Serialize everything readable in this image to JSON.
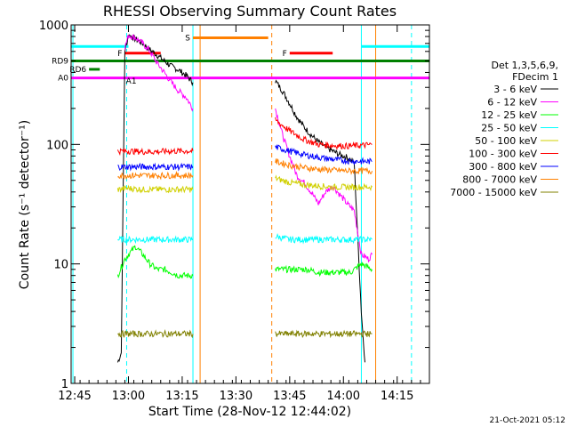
{
  "chart_data": {
    "type": "line",
    "title": "RHESSI Observing Summary Count Rates",
    "xlabel": "Start Time (28-Nov-12 12:44:02)",
    "ylabel": "Count Rate (s⁻¹ detector⁻¹)",
    "yscale": "log",
    "ylim": [
      1,
      1000
    ],
    "xlim_minutes": [
      0,
      100
    ],
    "x_ticks": [
      "12:45",
      "13:00",
      "13:15",
      "13:30",
      "13:45",
      "14:00",
      "14:15"
    ],
    "y_ticks": [
      "1",
      "10",
      "100",
      "1000"
    ],
    "legend_header": [
      "Det 1,3,5,6,9,",
      "FDecim 1"
    ],
    "legend_position": "right",
    "footer_timestamp": "21-Oct-2021 05:12",
    "series": [
      {
        "name": "3 - 6 keV",
        "color": "#000000",
        "segments": [
          {
            "t": [
              13,
              14,
              15,
              16,
              17,
              18,
              20,
              22,
              24,
              26,
              28,
              30,
              32,
              34
            ],
            "y": [
              1.5,
              1.8,
              600,
              820,
              800,
              760,
              700,
              620,
              560,
              500,
              450,
              420,
              380,
              330
            ]
          },
          {
            "t": [
              57,
              59,
              61,
              63,
              65,
              67,
              69,
              71,
              73,
              75,
              77,
              79,
              81,
              82
            ],
            "y": [
              340,
              280,
              220,
              170,
              140,
              120,
              105,
              95,
              88,
              82,
              78,
              70,
              4,
              1.5
            ]
          }
        ]
      },
      {
        "name": "6 - 12 keV",
        "color": "#ff00ff",
        "segments": [
          {
            "t": [
              15,
              16,
              18,
              20,
              22,
              24,
              26,
              28,
              30,
              32,
              34
            ],
            "y": [
              650,
              820,
              780,
              700,
              600,
              480,
              400,
              330,
              280,
              250,
              200
            ]
          },
          {
            "t": [
              57,
              59,
              61,
              63,
              65,
              67,
              69,
              71,
              73,
              75,
              77,
              79,
              81,
              83,
              84
            ],
            "y": [
              200,
              120,
              80,
              55,
              48,
              40,
              32,
              40,
              45,
              38,
              32,
              28,
              12,
              11,
              12
            ]
          }
        ]
      },
      {
        "name": "12 - 25 keV",
        "color": "#00ff00",
        "segments": [
          {
            "t": [
              13,
              15,
              16,
              18,
              20,
              22,
              24,
              26,
              28,
              30,
              32,
              34
            ],
            "y": [
              8,
              11,
              12,
              14,
              12,
              10,
              9,
              9,
              8.5,
              8,
              8,
              8
            ]
          },
          {
            "t": [
              57,
              60,
              63,
              66,
              69,
              72,
              75,
              78,
              81,
              84
            ],
            "y": [
              9,
              9,
              9,
              9,
              8.5,
              8.5,
              8.5,
              8.5,
              10,
              9
            ]
          }
        ]
      },
      {
        "name": "25 - 50 keV",
        "color": "#00ffff",
        "segments": [
          {
            "t": [
              13,
              16,
              20,
              24,
              28,
              32,
              34
            ],
            "y": [
              16,
              16,
              16,
              16,
              16,
              16,
              16
            ]
          },
          {
            "t": [
              57,
              61,
              65,
              69,
              73,
              77,
              81,
              84
            ],
            "y": [
              17,
              16,
              16,
              16,
              16,
              16,
              16,
              16
            ]
          }
        ]
      },
      {
        "name": "50 - 100 keV",
        "color": "#d0d000",
        "segments": [
          {
            "t": [
              13,
              16,
              20,
              24,
              28,
              32,
              34
            ],
            "y": [
              42,
              43,
              42,
              42,
              42,
              42,
              42
            ]
          },
          {
            "t": [
              57,
              61,
              65,
              69,
              73,
              77,
              81,
              84
            ],
            "y": [
              52,
              48,
              46,
              45,
              44,
              44,
              44,
              44
            ]
          }
        ]
      },
      {
        "name": "100 - 300 keV",
        "color": "#ff0000",
        "segments": [
          {
            "t": [
              13,
              16,
              20,
              24,
              28,
              32,
              34
            ],
            "y": [
              88,
              88,
              87,
              87,
              88,
              88,
              88
            ]
          },
          {
            "t": [
              57,
              61,
              65,
              69,
              73,
              77,
              81,
              84
            ],
            "y": [
              160,
              130,
              110,
              100,
              98,
              97,
              98,
              100
            ]
          }
        ]
      },
      {
        "name": "300 - 800 keV",
        "color": "#0000ff",
        "segments": [
          {
            "t": [
              13,
              16,
              20,
              24,
              28,
              32,
              34
            ],
            "y": [
              65,
              65,
              65,
              65,
              65,
              65,
              65
            ]
          },
          {
            "t": [
              57,
              61,
              65,
              69,
              73,
              77,
              81,
              84
            ],
            "y": [
              95,
              88,
              82,
              78,
              75,
              73,
              72,
              72
            ]
          }
        ]
      },
      {
        "name": "800 - 7000 keV",
        "color": "#ff8000",
        "segments": [
          {
            "t": [
              13,
              16,
              20,
              24,
              28,
              32,
              34
            ],
            "y": [
              55,
              55,
              55,
              55,
              55,
              55,
              55
            ]
          },
          {
            "t": [
              57,
              61,
              65,
              69,
              73,
              77,
              81,
              84
            ],
            "y": [
              72,
              67,
              64,
              62,
              61,
              60,
              60,
              60
            ]
          }
        ]
      },
      {
        "name": "7000 - 15000 keV",
        "color": "#808000",
        "segments": [
          {
            "t": [
              13,
              16,
              20,
              24,
              28,
              32,
              34
            ],
            "y": [
              2.6,
              2.6,
              2.6,
              2.6,
              2.6,
              2.6,
              2.6
            ]
          },
          {
            "t": [
              57,
              61,
              65,
              69,
              73,
              77,
              81,
              84
            ],
            "y": [
              2.6,
              2.6,
              2.6,
              2.6,
              2.6,
              2.6,
              2.6,
              2.6
            ]
          }
        ]
      }
    ],
    "state_flags": [
      {
        "label": "F",
        "color": "#ff0000",
        "t_start": 15,
        "t_end": 25,
        "y": 580
      },
      {
        "label": "F",
        "color": "#ff0000",
        "t_start": 61,
        "t_end": 73,
        "y": 580
      },
      {
        "label": "S",
        "color": "#ff8000",
        "t_start": 34,
        "t_end": 55,
        "y": 780
      },
      {
        "label": "RD9",
        "color": "#008000",
        "t_start": 0,
        "t_end": 100,
        "y": 500
      },
      {
        "label": "RD6",
        "color": "#008000",
        "t_start": 5,
        "t_end": 8,
        "y": 425
      },
      {
        "label": "A0",
        "color": "#ff00ff",
        "t_start": 0,
        "t_end": 100,
        "y": 360
      },
      {
        "label": "A1",
        "color": "#ff00ff",
        "t_start": 19,
        "t_end": 19,
        "y": 340
      },
      {
        "label": "",
        "color": "#00ffff",
        "t_start": 0,
        "t_end": 16,
        "y": 660
      },
      {
        "label": "",
        "color": "#00ffff",
        "t_start": 81,
        "t_end": 100,
        "y": 660
      }
    ],
    "vertical_markers": [
      {
        "t": 0.5,
        "color": "#00ffff",
        "style": "solid"
      },
      {
        "t": 15.5,
        "color": "#00ffff",
        "style": "dashed"
      },
      {
        "t": 34,
        "color": "#00ffff",
        "style": "solid"
      },
      {
        "t": 36,
        "color": "#ff8000",
        "style": "solid"
      },
      {
        "t": 56,
        "color": "#ff8000",
        "style": "dashed"
      },
      {
        "t": 81,
        "color": "#00ffff",
        "style": "solid"
      },
      {
        "t": 85,
        "color": "#ff8000",
        "style": "solid"
      },
      {
        "t": 95,
        "color": "#00ffff",
        "style": "dashed"
      }
    ]
  }
}
